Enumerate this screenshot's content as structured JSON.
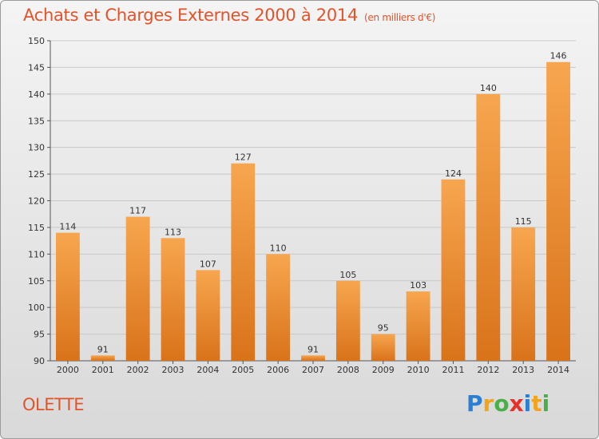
{
  "title": "Achats et Charges Externes 2000 à 2014",
  "subtitle": "(en milliers d'€)",
  "location": "OLETTE",
  "brand": {
    "letters": [
      "P",
      "r",
      "o",
      "x",
      "i",
      "t",
      "i"
    ],
    "colors": [
      "#2a7fd4",
      "#f2a51c",
      "#49b047",
      "#e8302a",
      "#2a7fd4",
      "#f2a51c",
      "#49b047"
    ]
  },
  "colors": {
    "bar_light": "#f7a64f",
    "bar_dark": "#d9731a",
    "title": "#e0542c",
    "grid": "#c8c8c8"
  },
  "chart_data": {
    "type": "bar",
    "categories": [
      "2000",
      "2001",
      "2002",
      "2003",
      "2004",
      "2005",
      "2006",
      "2007",
      "2008",
      "2009",
      "2010",
      "2011",
      "2012",
      "2013",
      "2014"
    ],
    "values": [
      114,
      91,
      117,
      113,
      107,
      127,
      110,
      91,
      105,
      95,
      103,
      124,
      140,
      115,
      146
    ],
    "data_labels": [
      "114",
      "91",
      "117",
      "113",
      "107",
      "127",
      "110",
      "91",
      "105",
      "95",
      "103",
      "124",
      "140",
      "115",
      "146"
    ],
    "title": "Achats et Charges Externes 2000 à 2014",
    "xlabel": "",
    "ylabel": "",
    "ylim": [
      90,
      150
    ],
    "yticks": [
      90,
      95,
      100,
      105,
      110,
      115,
      120,
      125,
      130,
      135,
      140,
      145,
      150
    ],
    "grid": true,
    "legend": "none"
  }
}
